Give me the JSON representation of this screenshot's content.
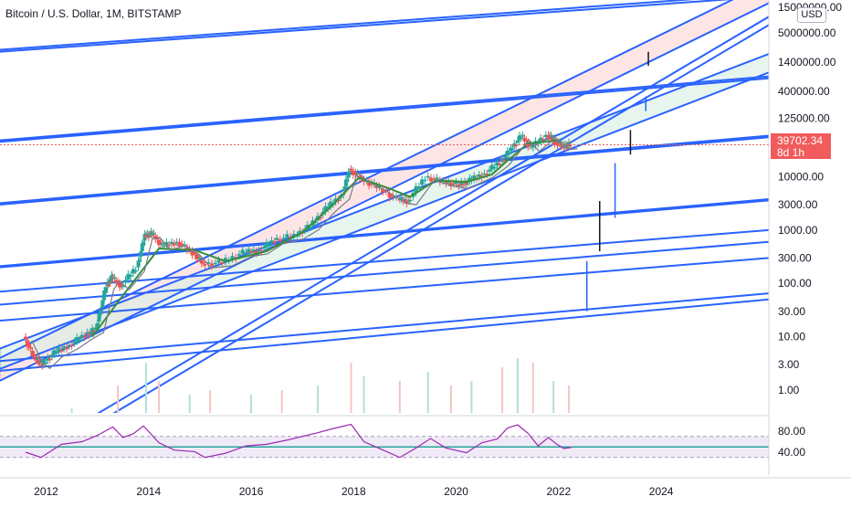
{
  "header": {
    "symbol_title": "Bitcoin / U.S. Dollar, 1M, BITSTAMP",
    "currency": "USD"
  },
  "price_axis": {
    "ticks": [
      "15000000.00",
      "5000000.00",
      "1400000.00",
      "400000.00",
      "125000.00",
      "10000.00",
      "3000.00",
      "1000.00",
      "300.00",
      "100.00",
      "30.00",
      "10.00",
      "3.00",
      "1.00"
    ],
    "tick_values": [
      15000000,
      5000000,
      1400000,
      400000,
      125000,
      10000,
      3000,
      1000,
      300,
      100,
      30,
      10,
      3,
      1
    ],
    "last_price_label": "39702.34",
    "last_price_value": 39702.34,
    "countdown_label": "8d 1h"
  },
  "time_axis": {
    "ticks": [
      "2012",
      "2014",
      "2016",
      "2018",
      "2020",
      "2022",
      "2024"
    ],
    "tick_years": [
      2012,
      2014,
      2016,
      2018,
      2020,
      2022,
      2024
    ],
    "range_years": [
      2011.1,
      2026.1
    ]
  },
  "rsi_axis": {
    "ticks": [
      "80.00",
      "40.00"
    ],
    "tick_values": [
      80,
      40
    ],
    "upper_band": 70,
    "lower_band": 30,
    "middle_line": 50
  },
  "colors": {
    "trendline": "#2962ff",
    "candle_up": "#26a69a",
    "candle_down": "#ef5350",
    "rsi_line": "#9c27b0",
    "rsi_band": "#e1d5f0",
    "rsi_mid": "#26a69a",
    "ma_line": "#388e3c",
    "channel_red": "#fbd3d6",
    "channel_green": "#d7eee4",
    "price_badge": "#f15b5b"
  },
  "chart_data": {
    "type": "candlestick",
    "scale": "log",
    "x_unit": "year",
    "price_points": [
      [
        2011.6,
        10
      ],
      [
        2011.8,
        4
      ],
      [
        2011.95,
        3
      ],
      [
        2012.2,
        5
      ],
      [
        2012.5,
        7
      ],
      [
        2012.8,
        11
      ],
      [
        2013.0,
        14
      ],
      [
        2013.2,
        90
      ],
      [
        2013.3,
        130
      ],
      [
        2013.5,
        90
      ],
      [
        2013.8,
        200
      ],
      [
        2013.95,
        800
      ],
      [
        2014.1,
        850
      ],
      [
        2014.3,
        500
      ],
      [
        2014.6,
        600
      ],
      [
        2014.9,
        380
      ],
      [
        2015.1,
        230
      ],
      [
        2015.5,
        250
      ],
      [
        2015.9,
        380
      ],
      [
        2016.2,
        420
      ],
      [
        2016.5,
        650
      ],
      [
        2016.9,
        800
      ],
      [
        2017.2,
        1200
      ],
      [
        2017.5,
        2500
      ],
      [
        2017.8,
        4500
      ],
      [
        2017.95,
        14000
      ],
      [
        2018.2,
        9000
      ],
      [
        2018.5,
        6500
      ],
      [
        2018.9,
        3800
      ],
      [
        2019.1,
        3500
      ],
      [
        2019.45,
        10000
      ],
      [
        2019.8,
        8000
      ],
      [
        2020.1,
        7000
      ],
      [
        2020.3,
        8500
      ],
      [
        2020.6,
        11500
      ],
      [
        2020.9,
        19000
      ],
      [
        2021.1,
        33000
      ],
      [
        2021.3,
        58000
      ],
      [
        2021.5,
        35000
      ],
      [
        2021.8,
        61000
      ],
      [
        2021.95,
        47000
      ],
      [
        2022.1,
        38000
      ],
      [
        2022.25,
        39702
      ]
    ],
    "ma_points": [
      [
        2012.9,
        10
      ],
      [
        2013.5,
        60
      ],
      [
        2014.2,
        450
      ],
      [
        2014.9,
        420
      ],
      [
        2015.5,
        260
      ],
      [
        2016.3,
        400
      ],
      [
        2017.0,
        900
      ],
      [
        2017.6,
        3000
      ],
      [
        2018.1,
        9500
      ],
      [
        2018.7,
        6000
      ],
      [
        2019.1,
        4200
      ],
      [
        2019.6,
        8500
      ],
      [
        2020.2,
        8000
      ],
      [
        2020.7,
        11000
      ],
      [
        2021.0,
        20000
      ],
      [
        2021.4,
        42000
      ],
      [
        2022.0,
        48000
      ]
    ],
    "volume_points": [
      [
        2012.5,
        0.05
      ],
      [
        2013.4,
        0.3
      ],
      [
        2013.95,
        0.55
      ],
      [
        2014.2,
        0.35
      ],
      [
        2014.8,
        0.2
      ],
      [
        2015.2,
        0.25
      ],
      [
        2016.0,
        0.2
      ],
      [
        2016.6,
        0.25
      ],
      [
        2017.3,
        0.3
      ],
      [
        2017.95,
        0.55
      ],
      [
        2018.2,
        0.4
      ],
      [
        2018.9,
        0.35
      ],
      [
        2019.45,
        0.45
      ],
      [
        2019.9,
        0.3
      ],
      [
        2020.3,
        0.35
      ],
      [
        2020.9,
        0.5
      ],
      [
        2021.2,
        0.6
      ],
      [
        2021.5,
        0.55
      ],
      [
        2021.9,
        0.35
      ],
      [
        2022.2,
        0.3
      ]
    ],
    "rsi_points": [
      [
        2011.6,
        40
      ],
      [
        2011.9,
        30
      ],
      [
        2012.3,
        55
      ],
      [
        2012.7,
        60
      ],
      [
        2013.0,
        72
      ],
      [
        2013.3,
        88
      ],
      [
        2013.5,
        68
      ],
      [
        2013.7,
        75
      ],
      [
        2013.9,
        90
      ],
      [
        2014.2,
        58
      ],
      [
        2014.5,
        44
      ],
      [
        2014.9,
        41
      ],
      [
        2015.1,
        30
      ],
      [
        2015.5,
        38
      ],
      [
        2015.9,
        52
      ],
      [
        2016.3,
        55
      ],
      [
        2016.7,
        63
      ],
      [
        2017.0,
        70
      ],
      [
        2017.3,
        77
      ],
      [
        2017.6,
        85
      ],
      [
        2017.95,
        93
      ],
      [
        2018.2,
        60
      ],
      [
        2018.6,
        43
      ],
      [
        2018.9,
        30
      ],
      [
        2019.2,
        47
      ],
      [
        2019.5,
        66
      ],
      [
        2019.8,
        48
      ],
      [
        2020.2,
        39
      ],
      [
        2020.5,
        58
      ],
      [
        2020.8,
        65
      ],
      [
        2021.0,
        86
      ],
      [
        2021.2,
        92
      ],
      [
        2021.4,
        76
      ],
      [
        2021.6,
        52
      ],
      [
        2021.8,
        68
      ],
      [
        2021.95,
        56
      ],
      [
        2022.1,
        47
      ],
      [
        2022.25,
        49
      ]
    ],
    "trendlines": [
      [
        2011.1,
        2200000,
        2026.1,
        24000000
      ],
      [
        2011.1,
        2400000,
        2026.1,
        27000000
      ],
      [
        2011.1,
        45000,
        2026.1,
        700000
      ],
      [
        2011.1,
        48000,
        2026.1,
        760000
      ],
      [
        2011.1,
        3000,
        2026.1,
        55000
      ],
      [
        2011.1,
        3200,
        2026.1,
        59000
      ],
      [
        2011.1,
        200,
        2026.1,
        3600
      ],
      [
        2011.1,
        210,
        2026.1,
        3800
      ],
      [
        2011.1,
        70,
        2026.1,
        1000
      ],
      [
        2011.1,
        40,
        2026.1,
        600
      ],
      [
        2011.1,
        20,
        2026.1,
        300
      ],
      [
        2011.1,
        2.3,
        2026.1,
        50
      ],
      [
        2011.1,
        3.5,
        2026.1,
        65
      ],
      [
        2011.1,
        0.03,
        2026.1,
        10000000
      ],
      [
        2011.1,
        0.02,
        2026.1,
        7000000
      ],
      [
        2011.1,
        1.5,
        2026.1,
        18000000
      ],
      [
        2011.1,
        4.0,
        2026.1,
        45000000
      ],
      [
        2011.1,
        2.5,
        2026.1,
        900000
      ],
      [
        2011.1,
        6.0,
        2026.1,
        2000000
      ]
    ],
    "projection_ticks": [
      [
        2023.75,
        2200000,
        1200000
      ],
      [
        2023.7,
        320000,
        170000
      ],
      [
        2023.4,
        75000,
        26000
      ],
      [
        2023.1,
        18000,
        1700
      ],
      [
        2022.8,
        3500,
        400
      ],
      [
        2022.55,
        260,
        30
      ]
    ]
  }
}
